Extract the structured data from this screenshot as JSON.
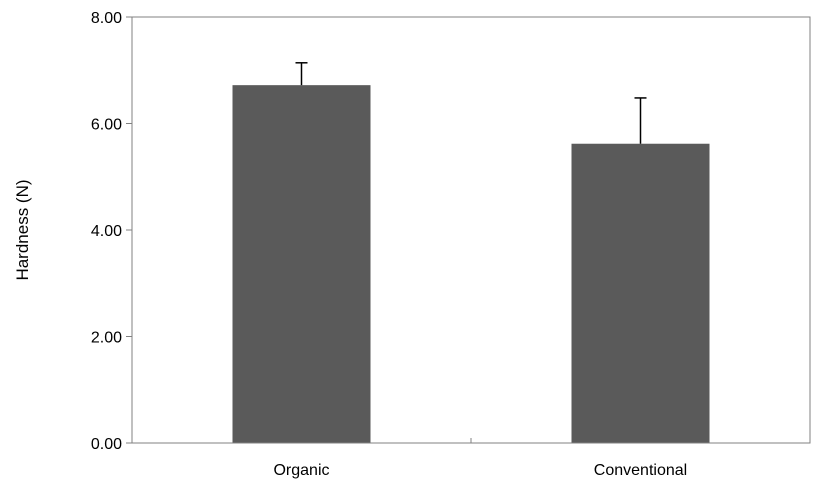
{
  "chart_data": {
    "type": "bar",
    "title": "",
    "xlabel": "",
    "ylabel": "Hardness (N)",
    "categories": [
      "Organic",
      "Conventional"
    ],
    "values": [
      6.72,
      5.62
    ],
    "error_upper": [
      0.42,
      0.86
    ],
    "ylim": [
      0,
      8
    ],
    "yticks": [
      "0.00",
      "2.00",
      "4.00",
      "6.00",
      "8.00"
    ],
    "grid": false,
    "legend": "none",
    "bar_color": "#5a5a5a",
    "axis_color": "#808080",
    "error_bar_color": "#000000"
  }
}
